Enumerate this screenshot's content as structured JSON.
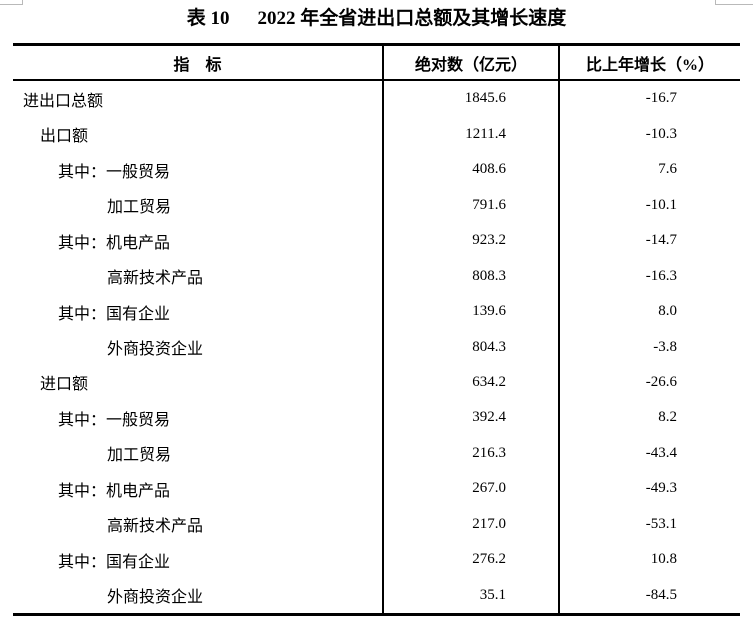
{
  "page": {
    "table_label": "表 10",
    "title": "2022 年全省进出口总额及其增长速度"
  },
  "table": {
    "columns": [
      "指　标",
      "绝对数（亿元）",
      "比上年增长（%）"
    ],
    "rows": [
      {
        "label": "进出口总额",
        "absolute": "1845.6",
        "growth": "-16.7"
      },
      {
        "label": "出口额",
        "absolute": "1211.4",
        "growth": "-10.3"
      },
      {
        "label": "其中：一般贸易",
        "absolute": "408.6",
        "growth": "7.6"
      },
      {
        "label": "加工贸易",
        "absolute": "791.6",
        "growth": "-10.1"
      },
      {
        "label": "其中：机电产品",
        "absolute": "923.2",
        "growth": "-14.7"
      },
      {
        "label": "高新技术产品",
        "absolute": "808.3",
        "growth": "-16.3"
      },
      {
        "label": "其中：国有企业",
        "absolute": "139.6",
        "growth": "8.0"
      },
      {
        "label": "外商投资企业",
        "absolute": "804.3",
        "growth": "-3.8"
      },
      {
        "label": "进口额",
        "absolute": "634.2",
        "growth": "-26.6"
      },
      {
        "label": "其中：一般贸易",
        "absolute": "392.4",
        "growth": "8.2"
      },
      {
        "label": "加工贸易",
        "absolute": "216.3",
        "growth": "-43.4"
      },
      {
        "label": "其中：机电产品",
        "absolute": "267.0",
        "growth": "-49.3"
      },
      {
        "label": "高新技术产品",
        "absolute": "217.0",
        "growth": "-53.1"
      },
      {
        "label": "其中：国有企业",
        "absolute": "276.2",
        "growth": "10.8"
      },
      {
        "label": "外商投资企业",
        "absolute": "35.1",
        "growth": "-84.5"
      }
    ]
  }
}
